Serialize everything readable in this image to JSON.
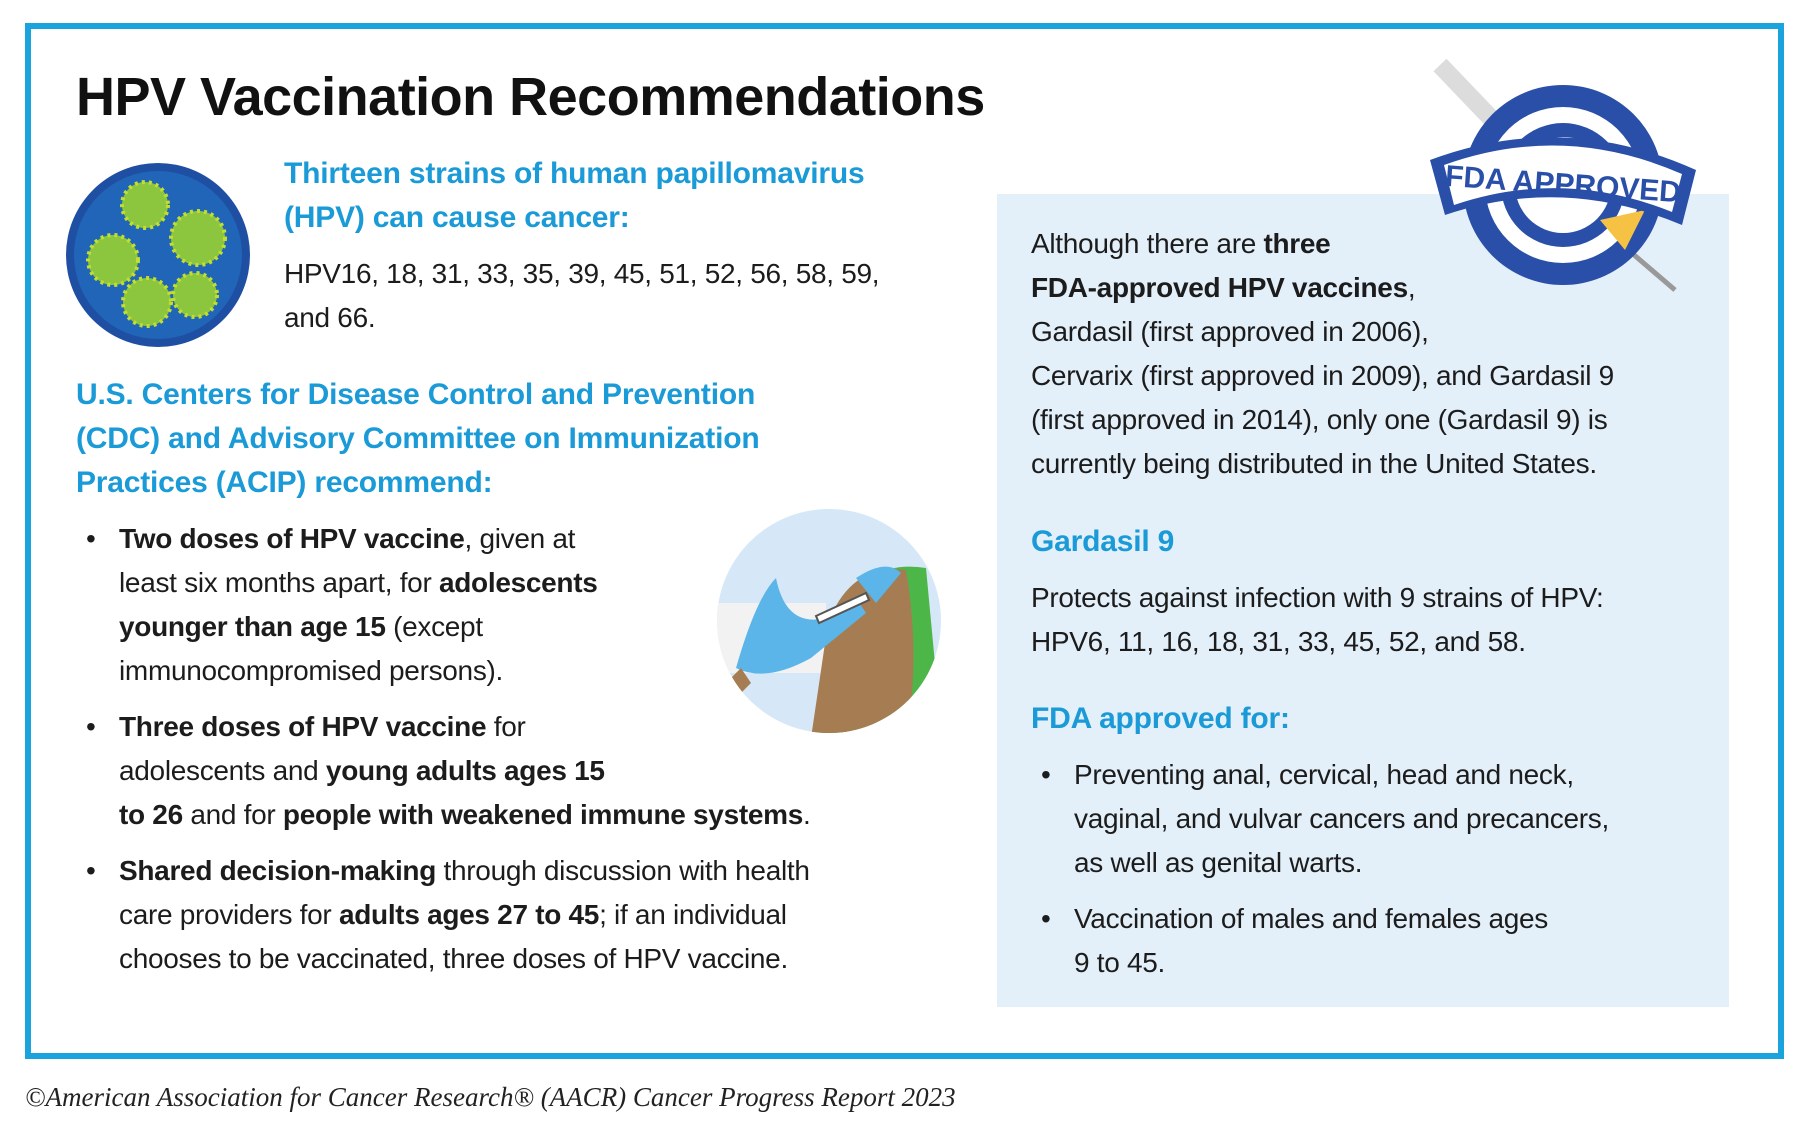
{
  "title": "HPV Vaccination Recommendations",
  "strains": {
    "heading_1": "Thirteen strains of human papillomavirus",
    "heading_2": "(HPV) can cause cancer:",
    "list_1": "HPV16, 18, 31, 33, 35, 39, 45, 51, 52, 56, 58, 59,",
    "list_2": "and 66."
  },
  "cdc": {
    "heading_1": "U.S. Centers for Disease Control and Prevention",
    "heading_2": "(CDC) and Advisory Committee on Immunization",
    "heading_3": "Practices (ACIP) recommend:",
    "bullets": [
      {
        "s1": "Two doses of HPV vaccine",
        "s2": ", given at",
        "s3": "least six months apart, for ",
        "s4": "adolescents",
        "s5": "younger than age 15",
        "s6": " (except",
        "s7": "immunocompromised persons)."
      },
      {
        "s1": "Three doses of HPV vaccine",
        "s2": " for",
        "s3": "adolescents and ",
        "s4": "young adults ages 15",
        "s5": "to 26",
        "s6": " and for ",
        "s7": "people with weakened immune systems",
        "s8": "."
      },
      {
        "s1": "Shared decision-making",
        "s2": " through discussion with health",
        "s3": "care providers for ",
        "s4": "adults ages 27 to 45",
        "s5": "; if an individual",
        "s6": "chooses to be vaccinated, three doses of HPV vaccine."
      }
    ]
  },
  "panel": {
    "intro": {
      "s1": "Although there are ",
      "s2": "three",
      "s3": "FDA-approved HPV vaccines",
      "s4": ",",
      "s5": "Gardasil (first approved in 2006),",
      "s6": "Cervarix (first approved in 2009), and Gardasil 9",
      "s7": "(first approved in 2014), only one (Gardasil 9) is",
      "s8": "currently being distributed in the United States."
    },
    "gardasil_heading": "Gardasil 9",
    "gardasil_1": "Protects against infection with 9 strains of HPV:",
    "gardasil_2": "HPV6, 11, 16, 18, 31, 33, 45, 52, and 58.",
    "approved_heading": "FDA approved for:",
    "approved_bullets": [
      {
        "l1": "Preventing anal, cervical, head and neck,",
        "l2": "vaginal, and vulvar cancers and precancers,",
        "l3": "as well as genital warts."
      },
      {
        "l1": "Vaccination of males and females ages",
        "l2": "9 to 45."
      }
    ]
  },
  "badge": {
    "text": "FDA APPROVED"
  },
  "bullet_char": "•",
  "footer": "©American Association for Cancer Research® (AACR) Cancer Progress Report 2023",
  "colors": {
    "accent": "#1ba3de",
    "heading": "#1a9ad6",
    "panel": "#e3eff9",
    "badge": "#2a4fa8"
  }
}
